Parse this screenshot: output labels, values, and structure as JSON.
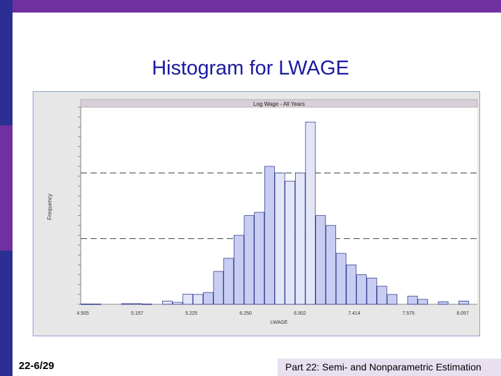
{
  "slide": {
    "title": "Histogram for LWAGE",
    "page_number": "22-6/29",
    "footer": "Part 22: Semi- and Nonparametric Estimation"
  },
  "colors": {
    "accent_purple": "#7030a0",
    "title_blue": "#1a1aa0",
    "bar_fill": "#c8cdf2",
    "bar_fill_alt": "#e3e6f7",
    "bar_stroke": "#1f2a80"
  },
  "chart_data": {
    "type": "bar",
    "title": "Log Wage - All Years",
    "xlabel": "LWAGE",
    "ylabel": "Frequency",
    "x_tick_labels": [
      "4.505",
      "5.157",
      "5.225",
      "6.250",
      "6.502",
      "7.414",
      "7.575",
      "8.057"
    ],
    "values": [
      1,
      1,
      0,
      0,
      2,
      2,
      1,
      0,
      10,
      6,
      31,
      30,
      36,
      100,
      140,
      210,
      270,
      280,
      420,
      400,
      375,
      400,
      555,
      270,
      240,
      155,
      120,
      90,
      80,
      55,
      30,
      0,
      25,
      15,
      0,
      8,
      0,
      10
    ],
    "alt_shade_indices": [
      8,
      9,
      10,
      11,
      19,
      20,
      21,
      22
    ],
    "ylim": [
      0,
      600
    ],
    "grid": "dashed horizontal lines at two levels",
    "gridlines": [
      200,
      400
    ]
  }
}
